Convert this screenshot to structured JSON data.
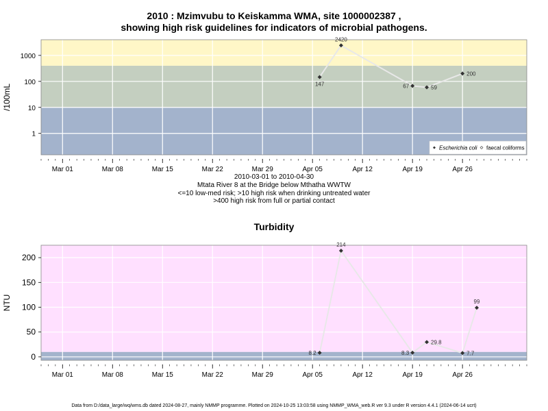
{
  "top": {
    "title_line1": "2010 : Mzimvubu to Keiskamma WMA, site 1000002387 ,",
    "title_line2": "showing high risk guidelines for indicators of microbial pathogens.",
    "caption_line1": "2010-03-01 to 2010-04-30",
    "caption_line2": "Mtata River 8 at the Bridge below Mthatha WWTW",
    "caption_line3": "<=10 low-med risk; >10 high risk when drinking untreated water",
    "caption_line4": ">400 high risk from full or partial contact",
    "legend_ecoli": "Escherichia coli",
    "legend_faecal": "faecal coliforms"
  },
  "bottom": {
    "title": "Turbidity"
  },
  "footer": "Data from D:/data_large/wq/wms.db dated 2024-08-27, mainly NMMP programme. Plotted on 2024-10-25 13:03:58 using NMMP_WMA_web.R ver 9.3 under R version 4.4.1 (2024-06-14 ucrt)",
  "colors": {
    "band_high_contact": "#fff7c7",
    "band_high_drinking": "#c4cfc0",
    "band_low_med": "#a3b3cc",
    "turbidity_bg": "#ffe0ff",
    "turbidity_low_band": "#a3b3cc",
    "series_line": "#e8e8e8",
    "marker": "#333333"
  },
  "chart_data": [
    {
      "type": "line",
      "ylabel": "/100mL",
      "yscale": "log",
      "ylim": [
        0.15,
        4000
      ],
      "xlim": [
        "2010-02-26",
        "2010-05-05"
      ],
      "yticks": [
        1,
        10,
        100,
        1000
      ],
      "yticklabels": [
        "1",
        "10",
        "100",
        "1000"
      ],
      "xticks": [
        "2010-03-01",
        "2010-03-08",
        "2010-03-15",
        "2010-03-22",
        "2010-03-29",
        "2010-04-05",
        "2010-04-12",
        "2010-04-19",
        "2010-04-26"
      ],
      "xticklabels": [
        "Mar 01",
        "Mar 08",
        "Mar 15",
        "Mar 22",
        "Mar 29",
        "Apr 05",
        "Apr 12",
        "Apr 19",
        "Apr 26"
      ],
      "bands": [
        {
          "from": 0.15,
          "to": 10,
          "color": "#a3b3cc"
        },
        {
          "from": 10,
          "to": 400,
          "color": "#c4cfc0"
        },
        {
          "from": 400,
          "to": 4000,
          "color": "#fff7c7"
        }
      ],
      "legend_position": "bottom-right",
      "series": [
        {
          "name": "Escherichia coli",
          "x": [
            "2010-04-06",
            "2010-04-09",
            "2010-04-19",
            "2010-04-21",
            "2010-04-26"
          ],
          "values": [
            147,
            2420,
            67,
            59,
            200
          ],
          "labels": [
            "147",
            "2420",
            "67",
            "59",
            "200"
          ],
          "label_pos": [
            "below",
            "above",
            "left",
            "right",
            "right"
          ]
        }
      ]
    },
    {
      "type": "line",
      "title": "Turbidity",
      "ylabel": "NTU",
      "ylim": [
        -7,
        225
      ],
      "xlim": [
        "2010-02-26",
        "2010-05-05"
      ],
      "yticks": [
        0,
        50,
        100,
        150,
        200
      ],
      "yticklabels": [
        "0",
        "50",
        "100",
        "150",
        "200"
      ],
      "xticks": [
        "2010-03-01",
        "2010-03-08",
        "2010-03-15",
        "2010-03-22",
        "2010-03-29",
        "2010-04-05",
        "2010-04-12",
        "2010-04-19",
        "2010-04-26"
      ],
      "xticklabels": [
        "Mar 01",
        "Mar 08",
        "Mar 15",
        "Mar 22",
        "Mar 29",
        "Apr 05",
        "Apr 12",
        "Apr 19",
        "Apr 26"
      ],
      "bands": [
        {
          "from": -7,
          "to": 10,
          "color": "#a3b3cc"
        },
        {
          "from": 10,
          "to": 225,
          "color": "#ffe0ff"
        }
      ],
      "series": [
        {
          "x": [
            "2010-04-06",
            "2010-04-09",
            "2010-04-19",
            "2010-04-21",
            "2010-04-26",
            "2010-04-28"
          ],
          "values": [
            8.2,
            214,
            8.3,
            29.8,
            7.7,
            99
          ],
          "labels": [
            "8.2",
            "214",
            "8.3",
            "29.8",
            "7.7",
            "99"
          ],
          "label_pos": [
            "left",
            "above",
            "left",
            "right",
            "right",
            "above"
          ]
        }
      ]
    }
  ]
}
